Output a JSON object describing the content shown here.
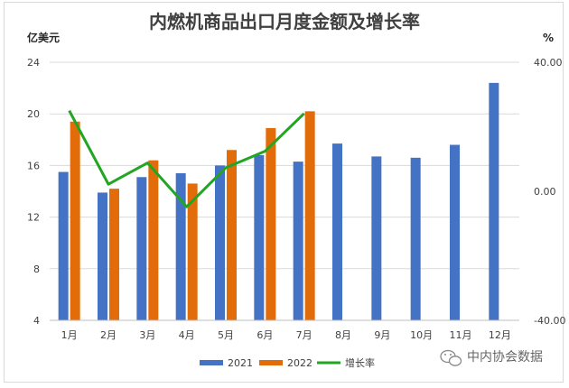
{
  "chart_data": {
    "type": "bar",
    "title": "内燃机商品出口月度金额及增长率",
    "ylabel_left": "亿美元",
    "ylabel_right": "%",
    "categories": [
      "1月",
      "2月",
      "3月",
      "4月",
      "5月",
      "6月",
      "7月",
      "8月",
      "9月",
      "10月",
      "11月",
      "12月"
    ],
    "left_ticks": [
      "4",
      "8",
      "12",
      "16",
      "20",
      "24"
    ],
    "right_ticks": [
      "-40.00",
      "0.00",
      "40.00"
    ],
    "ylim_left": [
      4,
      24
    ],
    "ylim_right": [
      -40,
      40
    ],
    "series": [
      {
        "name": "2021",
        "type": "bar",
        "axis": "left",
        "color": "#4472c4",
        "values": [
          15.5,
          13.9,
          15.1,
          15.4,
          16.0,
          16.8,
          16.3,
          17.7,
          16.7,
          16.6,
          17.6,
          22.4
        ]
      },
      {
        "name": "2022",
        "type": "bar",
        "axis": "left",
        "color": "#e36c0a",
        "values": [
          19.4,
          14.2,
          16.4,
          14.6,
          17.2,
          18.9,
          20.2,
          null,
          null,
          null,
          null,
          null
        ]
      },
      {
        "name": "增长率",
        "type": "line",
        "axis": "right",
        "color": "#22a622",
        "values": [
          25.0,
          2.2,
          8.8,
          -4.8,
          7.3,
          12.4,
          24.1,
          null,
          null,
          null,
          null,
          null
        ]
      }
    ],
    "grid": true,
    "legend_position": "bottom"
  },
  "watermark": "中内协会数据"
}
